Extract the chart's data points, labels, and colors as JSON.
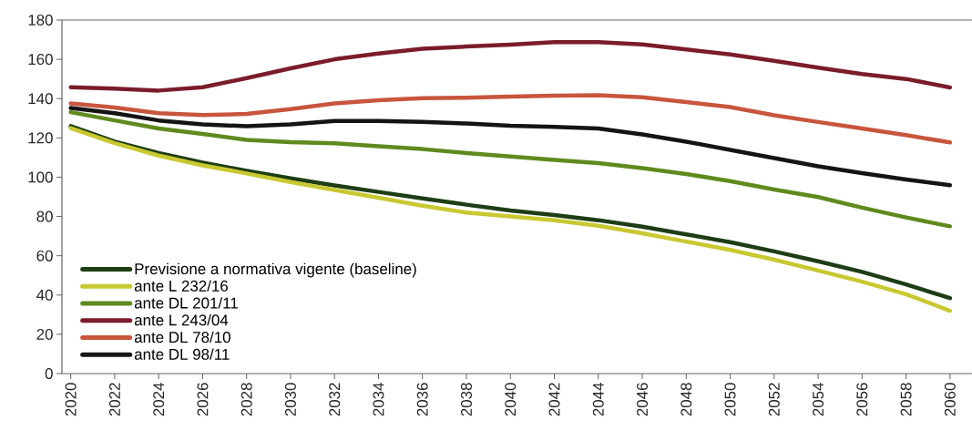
{
  "chart_data": {
    "type": "line",
    "x": [
      2020,
      2022,
      2024,
      2026,
      2028,
      2030,
      2032,
      2034,
      2036,
      2038,
      2040,
      2042,
      2044,
      2046,
      2048,
      2050,
      2052,
      2054,
      2056,
      2058,
      2060
    ],
    "series": [
      {
        "name": "Previsione a normativa vigente (baseline)",
        "color": "#1e3d14",
        "values": [
          126,
          118.1,
          112.3,
          107.4,
          103.2,
          99.4,
          95.8,
          92.5,
          89.2,
          86,
          83,
          80.7,
          78.1,
          74.8,
          70.9,
          66.9,
          62.2,
          57.2,
          51.8,
          45.4,
          38.4
        ]
      },
      {
        "name": "ante L 232/16",
        "color": "#c8c832",
        "values": [
          125,
          117.3,
          111,
          106,
          101.9,
          97.5,
          93.5,
          89.5,
          85.5,
          82,
          80,
          78.1,
          75.3,
          71.4,
          67.2,
          63,
          58,
          52.5,
          46.8,
          40.4,
          32
        ]
      },
      {
        "name": "ante DL 201/11",
        "color": "#5f8a1e",
        "values": [
          133.1,
          128.9,
          124.8,
          122,
          119,
          117.8,
          117.3,
          115.7,
          114.3,
          112.3,
          110.5,
          108.8,
          107.2,
          104.6,
          101.6,
          98,
          93.7,
          89.9,
          84.5,
          79.5,
          75
        ]
      },
      {
        "name": "ante L 243/04",
        "color": "#7b1c2a",
        "values": [
          145.8,
          145.1,
          144.1,
          145.8,
          150.4,
          155.4,
          160,
          162.9,
          165.4,
          166.5,
          167.5,
          168.7,
          168.7,
          167.6,
          165,
          162.5,
          159.2,
          155.8,
          152.5,
          150,
          145.7
        ]
      },
      {
        "name": "ante DL 78/10",
        "color": "#c8553d",
        "values": [
          137.5,
          135.5,
          132.6,
          131.6,
          132.2,
          134.7,
          137.5,
          139.2,
          140.2,
          140.5,
          141,
          141.5,
          141.7,
          140.7,
          138.2,
          135.7,
          131.5,
          128.1,
          124.8,
          121.4,
          117.7
        ]
      },
      {
        "name": "ante DL 98/11",
        "color": "#141414",
        "values": [
          135.2,
          132.6,
          128.9,
          126.9,
          125.9,
          126.9,
          128.6,
          128.6,
          128.1,
          127.3,
          126.2,
          125.6,
          124.8,
          121.8,
          118.1,
          113.9,
          109.7,
          105.5,
          102.1,
          98.8,
          95.9
        ]
      }
    ],
    "xlim": [
      2019.6,
      2061
    ],
    "xticks": [
      2020,
      2022,
      2024,
      2026,
      2028,
      2030,
      2032,
      2034,
      2036,
      2038,
      2040,
      2042,
      2044,
      2046,
      2048,
      2050,
      2052,
      2054,
      2056,
      2058,
      2060
    ],
    "ylim": [
      0,
      180
    ],
    "yticks": [
      0,
      20,
      40,
      60,
      80,
      100,
      120,
      140,
      160,
      180
    ],
    "legend": "bottom left",
    "grid": false,
    "marker": "none",
    "line_style": "solid"
  }
}
